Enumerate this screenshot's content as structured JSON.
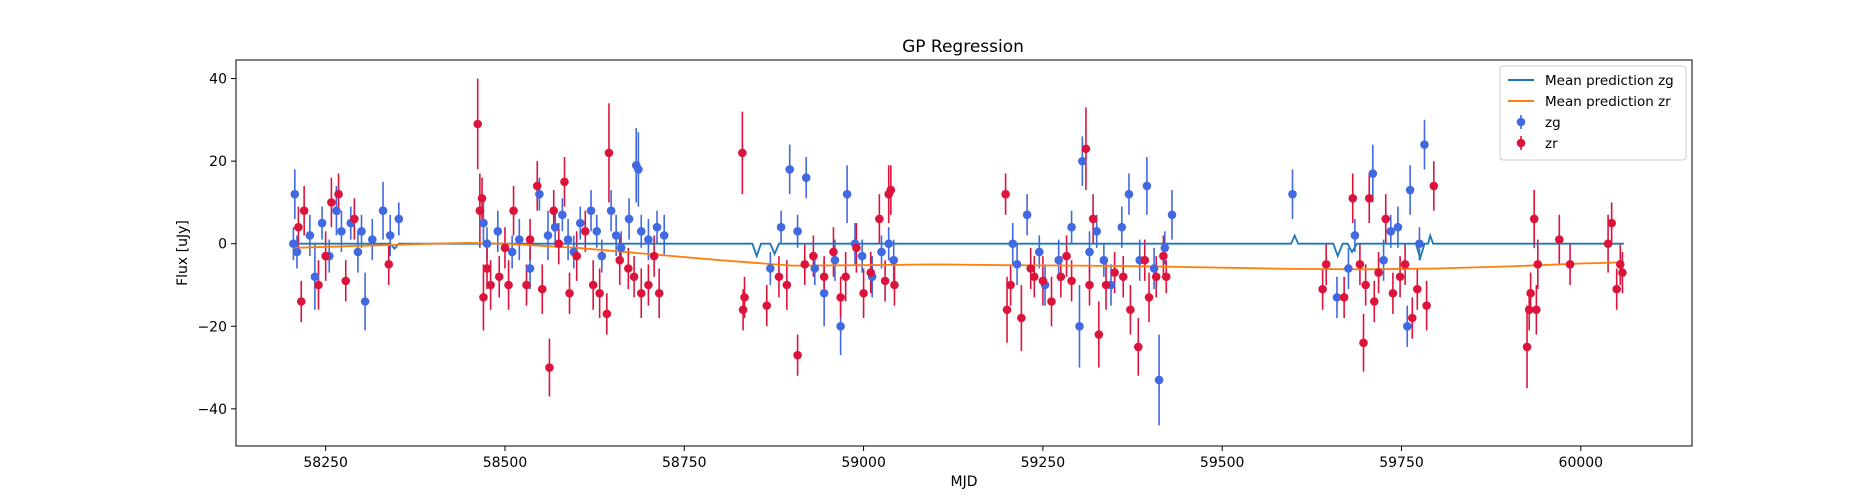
{
  "chart_data": {
    "type": "scatter",
    "title": "GP Regression",
    "xlabel": "MJD",
    "ylabel": "Flux [uJy]",
    "xlim": [
      58125,
      60155
    ],
    "ylim": [
      -49,
      44.5
    ],
    "xticks": [
      58250,
      58500,
      58750,
      59000,
      59250,
      59500,
      59750,
      60000
    ],
    "yticks": [
      -40,
      -20,
      0,
      20,
      40
    ],
    "grid": false,
    "legend_position": "top-right",
    "legend": [
      {
        "label": "Mean prediction zg",
        "kind": "line",
        "color": "#1f77b4"
      },
      {
        "label": "Mean prediction zr",
        "kind": "line",
        "color": "#ff7f0e"
      },
      {
        "label": "zg",
        "kind": "errorbar",
        "color": "#4169e1"
      },
      {
        "label": "zr",
        "kind": "errorbar",
        "color": "#dc143c"
      }
    ],
    "series": [
      {
        "name": "Mean prediction zg",
        "type": "line",
        "color": "#1f77b4",
        "points": [
          [
            58205,
            0
          ],
          [
            58340,
            0
          ],
          [
            58346,
            -1.2
          ],
          [
            58352,
            0
          ],
          [
            58845,
            0
          ],
          [
            58851,
            -3.0
          ],
          [
            58857,
            0
          ],
          [
            58870,
            0
          ],
          [
            58876,
            -2.5
          ],
          [
            58882,
            0
          ],
          [
            59596,
            0
          ],
          [
            59601,
            2.0
          ],
          [
            59606,
            0
          ],
          [
            59655,
            0
          ],
          [
            59661,
            -3.0
          ],
          [
            59668,
            0
          ],
          [
            59675,
            0
          ],
          [
            59681,
            -2.0
          ],
          [
            59688,
            0
          ],
          [
            59770,
            0
          ],
          [
            59776,
            -3.5
          ],
          [
            59782,
            0
          ],
          [
            59787,
            0
          ],
          [
            59790,
            2.0
          ],
          [
            59794,
            0
          ],
          [
            60060,
            0
          ]
        ]
      },
      {
        "name": "Mean prediction zr",
        "type": "line",
        "color": "#ff7f0e",
        "points": [
          [
            58205,
            -1.0
          ],
          [
            58300,
            -0.5
          ],
          [
            58400,
            0.0
          ],
          [
            58450,
            0.2
          ],
          [
            58500,
            0.0
          ],
          [
            58600,
            -1.0
          ],
          [
            58700,
            -2.5
          ],
          [
            58800,
            -4.0
          ],
          [
            58900,
            -5.3
          ],
          [
            59000,
            -5.2
          ],
          [
            59100,
            -5.0
          ],
          [
            59200,
            -5.2
          ],
          [
            59300,
            -5.3
          ],
          [
            59400,
            -5.5
          ],
          [
            59500,
            -5.8
          ],
          [
            59600,
            -6.1
          ],
          [
            59700,
            -6.2
          ],
          [
            59800,
            -6.0
          ],
          [
            59900,
            -5.5
          ],
          [
            60000,
            -4.8
          ],
          [
            60060,
            -4.5
          ]
        ]
      },
      {
        "name": "zg",
        "type": "errorbar",
        "color": "#4169e1",
        "points": [
          [
            58207,
            12,
            6
          ],
          [
            58205,
            0,
            4
          ],
          [
            58210,
            -2,
            4
          ],
          [
            58228,
            2,
            5
          ],
          [
            58235,
            -8,
            8
          ],
          [
            58245,
            5,
            4
          ],
          [
            58255,
            -3,
            4
          ],
          [
            58265,
            8,
            6
          ],
          [
            58272,
            3,
            5
          ],
          [
            58285,
            5,
            4
          ],
          [
            58295,
            -2,
            5
          ],
          [
            58300,
            3,
            4
          ],
          [
            58305,
            -14,
            7
          ],
          [
            58315,
            1,
            5
          ],
          [
            58330,
            8,
            7
          ],
          [
            58340,
            2,
            5
          ],
          [
            58352,
            6,
            4
          ],
          [
            58470,
            5,
            5
          ],
          [
            58475,
            0,
            4
          ],
          [
            58490,
            3,
            5
          ],
          [
            58510,
            -2,
            4
          ],
          [
            58520,
            1,
            5
          ],
          [
            58535,
            -6,
            5
          ],
          [
            58548,
            12,
            4
          ],
          [
            58560,
            2,
            6
          ],
          [
            58570,
            4,
            5
          ],
          [
            58580,
            7,
            4
          ],
          [
            58588,
            1,
            5
          ],
          [
            58596,
            -2,
            4
          ],
          [
            58605,
            5,
            4
          ],
          [
            58620,
            8,
            5
          ],
          [
            58628,
            3,
            4
          ],
          [
            58635,
            -3,
            4
          ],
          [
            58648,
            8,
            5
          ],
          [
            58655,
            2,
            5
          ],
          [
            58662,
            -1,
            4
          ],
          [
            58673,
            6,
            5
          ],
          [
            58683,
            19,
            9
          ],
          [
            58686,
            18,
            9
          ],
          [
            58690,
            3,
            4
          ],
          [
            58700,
            1,
            5
          ],
          [
            58712,
            4,
            4
          ],
          [
            58722,
            2,
            5
          ],
          [
            58870,
            -6,
            4
          ],
          [
            58885,
            4,
            4
          ],
          [
            58897,
            18,
            6
          ],
          [
            58908,
            3,
            4
          ],
          [
            58920,
            16,
            5
          ],
          [
            58932,
            -6,
            4
          ],
          [
            58945,
            -12,
            8
          ],
          [
            58960,
            -4,
            5
          ],
          [
            58968,
            -20,
            7
          ],
          [
            58977,
            12,
            7
          ],
          [
            58988,
            0,
            5
          ],
          [
            58998,
            -3,
            4
          ],
          [
            59012,
            -8,
            5
          ],
          [
            59025,
            -2,
            4
          ],
          [
            59035,
            0,
            4
          ],
          [
            59042,
            -4,
            5
          ],
          [
            59208,
            0,
            5
          ],
          [
            59214,
            -5,
            5
          ],
          [
            59228,
            7,
            5
          ],
          [
            59245,
            -2,
            4
          ],
          [
            59253,
            -10,
            5
          ],
          [
            59272,
            -4,
            5
          ],
          [
            59290,
            4,
            4
          ],
          [
            59301,
            -20,
            10
          ],
          [
            59305,
            20,
            6
          ],
          [
            59315,
            -2,
            5
          ],
          [
            59325,
            3,
            4
          ],
          [
            59335,
            -4,
            4
          ],
          [
            59345,
            -10,
            5
          ],
          [
            59360,
            4,
            5
          ],
          [
            59370,
            12,
            5
          ],
          [
            59385,
            -4,
            5
          ],
          [
            59395,
            14,
            7
          ],
          [
            59405,
            -6,
            5
          ],
          [
            59412,
            -33,
            11
          ],
          [
            59420,
            -1,
            4
          ],
          [
            59430,
            7,
            6
          ],
          [
            59598,
            12,
            6
          ],
          [
            59660,
            -13,
            5
          ],
          [
            59676,
            -6,
            5
          ],
          [
            59685,
            2,
            4
          ],
          [
            59710,
            17,
            7
          ],
          [
            59725,
            -4,
            5
          ],
          [
            59735,
            3,
            4
          ],
          [
            59745,
            4,
            5
          ],
          [
            59758,
            -20,
            5
          ],
          [
            59762,
            13,
            6
          ],
          [
            59775,
            0,
            4
          ],
          [
            59782,
            24,
            6
          ]
        ]
      },
      {
        "name": "zr",
        "type": "errorbar",
        "color": "#dc143c",
        "points": [
          [
            58212,
            4,
            5
          ],
          [
            58216,
            -14,
            5
          ],
          [
            58220,
            8,
            6
          ],
          [
            58240,
            -10,
            6
          ],
          [
            58250,
            -3,
            6
          ],
          [
            58258,
            10,
            6
          ],
          [
            58268,
            12,
            5
          ],
          [
            58278,
            -9,
            5
          ],
          [
            58290,
            6,
            5
          ],
          [
            58338,
            -5,
            5
          ],
          [
            58462,
            29,
            11
          ],
          [
            58465,
            8,
            9
          ],
          [
            58468,
            11,
            5
          ],
          [
            58470,
            -13,
            8
          ],
          [
            58475,
            -6,
            5
          ],
          [
            58480,
            -10,
            6
          ],
          [
            58492,
            -8,
            5
          ],
          [
            58500,
            -1,
            5
          ],
          [
            58505,
            -10,
            6
          ],
          [
            58512,
            8,
            6
          ],
          [
            58530,
            -10,
            5
          ],
          [
            58535,
            1,
            5
          ],
          [
            58545,
            14,
            6
          ],
          [
            58552,
            -11,
            6
          ],
          [
            58562,
            -30,
            7
          ],
          [
            58568,
            8,
            5
          ],
          [
            58575,
            0,
            5
          ],
          [
            58583,
            15,
            6
          ],
          [
            58590,
            -12,
            5
          ],
          [
            58600,
            -3,
            6
          ],
          [
            58612,
            3,
            5
          ],
          [
            58623,
            -10,
            6
          ],
          [
            58632,
            -12,
            6
          ],
          [
            58642,
            -17,
            5
          ],
          [
            58645,
            22,
            12
          ],
          [
            58660,
            -4,
            6
          ],
          [
            58672,
            -6,
            5
          ],
          [
            58680,
            -8,
            5
          ],
          [
            58690,
            -12,
            6
          ],
          [
            58700,
            -10,
            5
          ],
          [
            58708,
            -3,
            5
          ],
          [
            58715,
            -12,
            6
          ],
          [
            58831,
            22,
            10
          ],
          [
            58834,
            -13,
            5
          ],
          [
            58832,
            -16,
            5
          ],
          [
            58865,
            -15,
            5
          ],
          [
            58882,
            -8,
            5
          ],
          [
            58893,
            -10,
            6
          ],
          [
            58908,
            -27,
            5
          ],
          [
            58918,
            -5,
            5
          ],
          [
            58930,
            -3,
            5
          ],
          [
            58945,
            -8,
            5
          ],
          [
            58958,
            -2,
            6
          ],
          [
            58968,
            -13,
            5
          ],
          [
            58975,
            -8,
            6
          ],
          [
            58990,
            -1,
            6
          ],
          [
            59000,
            -12,
            6
          ],
          [
            59010,
            -7,
            5
          ],
          [
            59022,
            6,
            6
          ],
          [
            59030,
            -9,
            5
          ],
          [
            59035,
            12,
            7
          ],
          [
            59038,
            13,
            6
          ],
          [
            59043,
            -10,
            5
          ],
          [
            59198,
            12,
            5
          ],
          [
            59200,
            -16,
            8
          ],
          [
            59205,
            -10,
            5
          ],
          [
            59220,
            -18,
            8
          ],
          [
            59233,
            -6,
            5
          ],
          [
            59238,
            -8,
            5
          ],
          [
            59250,
            -9,
            6
          ],
          [
            59262,
            -14,
            6
          ],
          [
            59275,
            -8,
            5
          ],
          [
            59283,
            -3,
            5
          ],
          [
            59290,
            -9,
            5
          ],
          [
            59310,
            23,
            10
          ],
          [
            59315,
            -10,
            5
          ],
          [
            59320,
            6,
            6
          ],
          [
            59328,
            -22,
            8
          ],
          [
            59338,
            -10,
            6
          ],
          [
            59350,
            -7,
            5
          ],
          [
            59362,
            -8,
            5
          ],
          [
            59372,
            -16,
            6
          ],
          [
            59383,
            -25,
            7
          ],
          [
            59392,
            -4,
            5
          ],
          [
            59398,
            -13,
            6
          ],
          [
            59408,
            -8,
            5
          ],
          [
            59418,
            -3,
            5
          ],
          [
            59422,
            -8,
            4
          ],
          [
            59640,
            -11,
            5
          ],
          [
            59645,
            -5,
            5
          ],
          [
            59670,
            -13,
            5
          ],
          [
            59682,
            11,
            6
          ],
          [
            59692,
            -5,
            5
          ],
          [
            59697,
            -24,
            7
          ],
          [
            59700,
            -10,
            5
          ],
          [
            59705,
            11,
            6
          ],
          [
            59712,
            -14,
            5
          ],
          [
            59718,
            -7,
            5
          ],
          [
            59728,
            6,
            6
          ],
          [
            59738,
            -12,
            5
          ],
          [
            59748,
            -8,
            5
          ],
          [
            59755,
            -5,
            5
          ],
          [
            59765,
            -18,
            5
          ],
          [
            59772,
            -11,
            5
          ],
          [
            59785,
            -15,
            6
          ],
          [
            59795,
            14,
            6
          ],
          [
            59925,
            -25,
            10
          ],
          [
            59928,
            -16,
            5
          ],
          [
            59930,
            -12,
            5
          ],
          [
            59935,
            6,
            7
          ],
          [
            59940,
            -5,
            6
          ],
          [
            59938,
            -16,
            6
          ],
          [
            59970,
            1,
            6
          ],
          [
            59985,
            -5,
            5
          ],
          [
            60038,
            0,
            7
          ],
          [
            60043,
            5,
            5
          ],
          [
            60050,
            -11,
            5
          ],
          [
            60055,
            -5,
            5
          ],
          [
            60058,
            -7,
            5
          ]
        ]
      }
    ]
  }
}
